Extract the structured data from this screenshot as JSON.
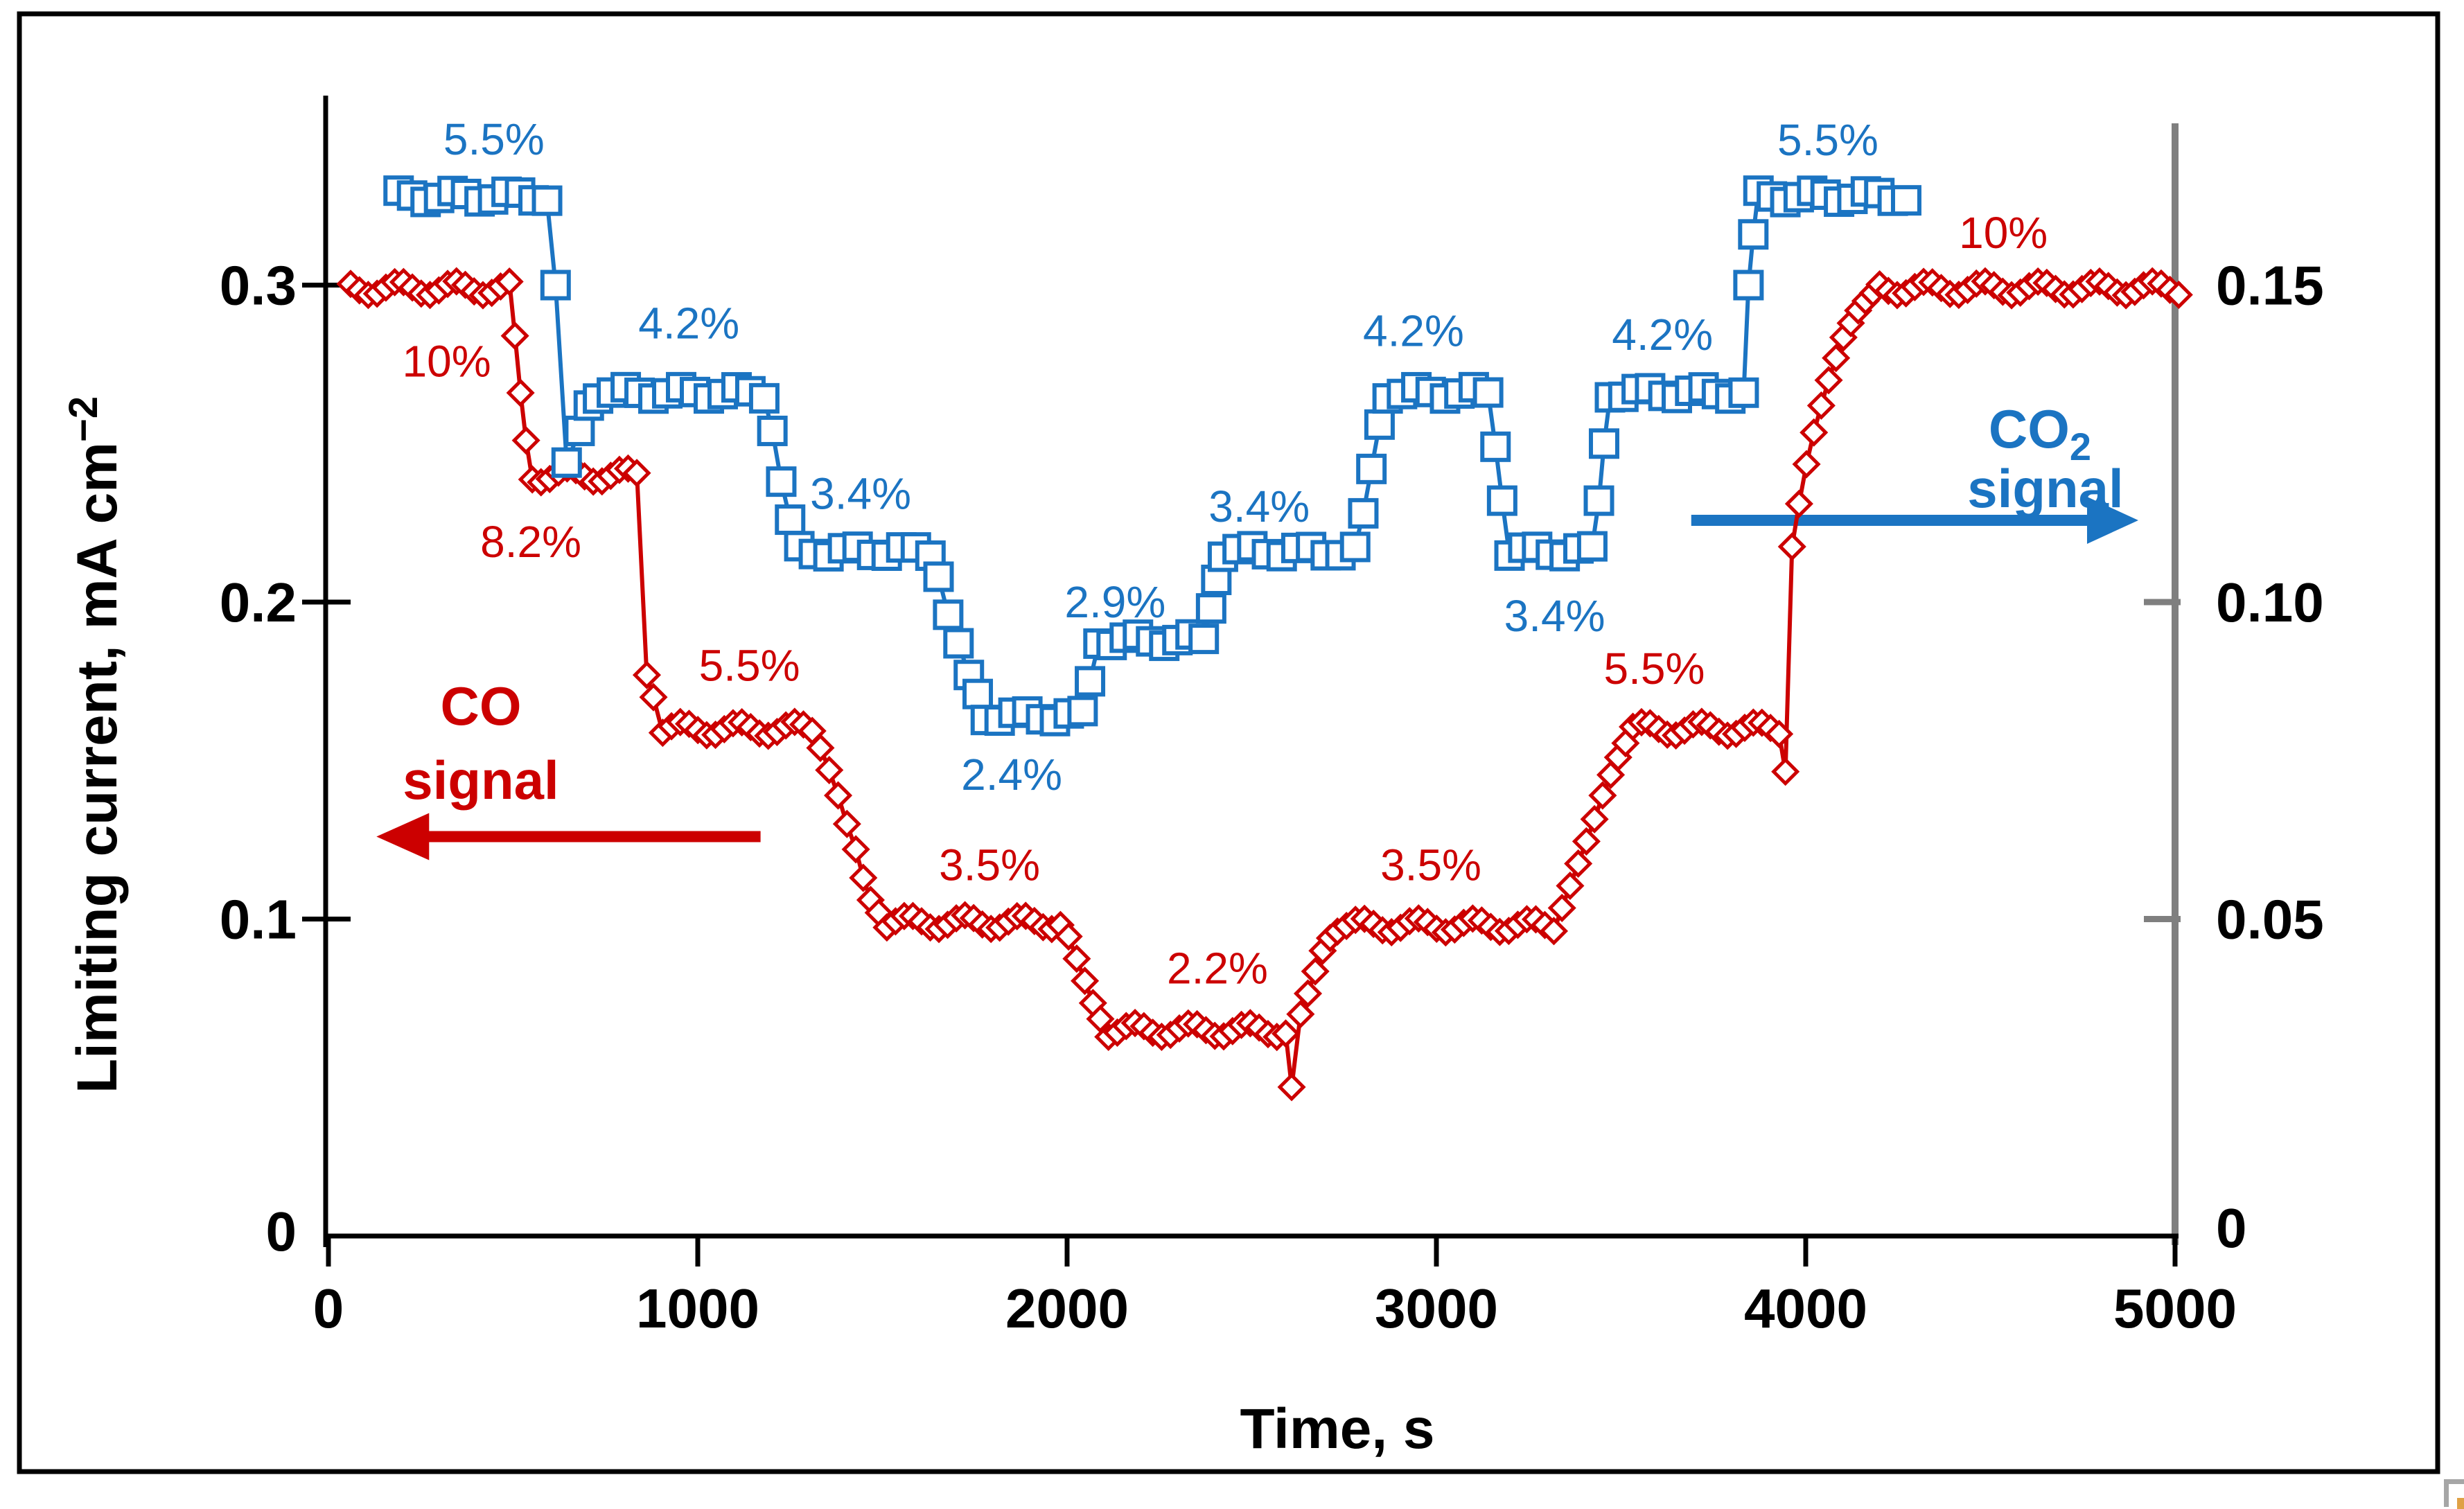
{
  "figure": {
    "background": "#ffffff",
    "frame_color": "#000000",
    "right_axis_color": "#7f7f7f",
    "co_color": "#cc0000",
    "co2_color": "#1b74c2"
  },
  "chart_data": {
    "type": "line",
    "title": "",
    "xlabel": "Time, s",
    "ylabel_left_main": "Limiting current, mA cm",
    "ylabel_left_sup": "−2",
    "legend_position": "none",
    "grid": false,
    "x_axis": {
      "min": 0,
      "max": 5000,
      "tick_values": [
        0,
        1000,
        2000,
        3000,
        4000,
        5000
      ],
      "tick_labels": [
        "0",
        "1000",
        "2000",
        "3000",
        "4000",
        "5000"
      ]
    },
    "y_left": {
      "min": 0,
      "max": 0.35,
      "tick_values": [
        0.3,
        0.2,
        0.1,
        0
      ],
      "tick_labels": [
        "0.3",
        "0.2",
        "0.1",
        "0"
      ]
    },
    "y_right": {
      "min": 0,
      "max": 0.175,
      "tick_values": [
        0.15,
        0.1,
        0.05,
        0
      ],
      "tick_labels": [
        "0.15",
        "0.10",
        "0.05",
        "0"
      ]
    },
    "series": [
      {
        "name": "CO signal",
        "axis": "left",
        "color": "#cc0000",
        "marker": "diamond",
        "profile": [
          {
            "t0": 60,
            "t1": 490,
            "v": 0.299
          },
          {
            "t": 505,
            "v": 0.284
          },
          {
            "t": 520,
            "v": 0.266
          },
          {
            "t": 535,
            "v": 0.251
          },
          {
            "t0": 552,
            "t1": 835,
            "v": 0.24
          },
          {
            "t": 862,
            "v": 0.177
          },
          {
            "t": 880,
            "v": 0.17
          },
          {
            "t0": 905,
            "t1": 1310,
            "v": 0.16
          },
          {
            "t": 1332,
            "v": 0.154
          },
          {
            "t": 1356,
            "v": 0.147
          },
          {
            "t": 1380,
            "v": 0.139
          },
          {
            "t": 1404,
            "v": 0.13
          },
          {
            "t": 1428,
            "v": 0.122
          },
          {
            "t": 1448,
            "v": 0.113
          },
          {
            "t": 1468,
            "v": 0.106
          },
          {
            "t": 1490,
            "v": 0.102
          },
          {
            "t0": 1512,
            "t1": 1982,
            "v": 0.099
          },
          {
            "t": 2004,
            "v": 0.0945
          },
          {
            "t": 2026,
            "v": 0.0875
          },
          {
            "t": 2048,
            "v": 0.0805
          },
          {
            "t": 2070,
            "v": 0.0735
          },
          {
            "t": 2090,
            "v": 0.0685
          },
          {
            "t0": 2112,
            "t1": 2592,
            "v": 0.065
          },
          {
            "t": 2608,
            "v": 0.047
          },
          {
            "t": 2632,
            "v": 0.07
          },
          {
            "t": 2652,
            "v": 0.0765
          },
          {
            "t": 2672,
            "v": 0.0835
          },
          {
            "t": 2692,
            "v": 0.09
          },
          {
            "t": 2712,
            "v": 0.094
          },
          {
            "t0": 2732,
            "t1": 3318,
            "v": 0.098
          },
          {
            "t": 3340,
            "v": 0.1035
          },
          {
            "t": 3362,
            "v": 0.1105
          },
          {
            "t": 3384,
            "v": 0.1175
          },
          {
            "t": 3406,
            "v": 0.1245
          },
          {
            "t": 3428,
            "v": 0.1315
          },
          {
            "t": 3450,
            "v": 0.139
          },
          {
            "t": 3472,
            "v": 0.1455
          },
          {
            "t": 3492,
            "v": 0.151
          },
          {
            "t": 3512,
            "v": 0.1555
          },
          {
            "t0": 3532,
            "t1": 3928,
            "v": 0.16
          },
          {
            "t": 3945,
            "v": 0.1465
          },
          {
            "t": 3963,
            "v": 0.2175
          },
          {
            "t": 3982,
            "v": 0.231
          },
          {
            "t": 4002,
            "v": 0.2435
          },
          {
            "t": 4022,
            "v": 0.2535
          },
          {
            "t": 4042,
            "v": 0.262
          },
          {
            "t": 4062,
            "v": 0.27
          },
          {
            "t": 4082,
            "v": 0.277
          },
          {
            "t": 4102,
            "v": 0.2835
          },
          {
            "t": 4122,
            "v": 0.288
          },
          {
            "t": 4142,
            "v": 0.292
          },
          {
            "t": 4162,
            "v": 0.295
          },
          {
            "t": 4182,
            "v": 0.2975
          },
          {
            "t0": 4200,
            "t1": 5010,
            "v": 0.299
          }
        ]
      },
      {
        "name": "CO2 signal",
        "axis": "right",
        "color": "#1b74c2",
        "marker": "square",
        "profile": [
          {
            "t0": 190,
            "t1": 592,
            "v": 0.164
          },
          {
            "t": 615,
            "v": 0.15
          },
          {
            "t": 645,
            "v": 0.122
          },
          {
            "t": 680,
            "v": 0.127
          },
          {
            "t": 705,
            "v": 0.131
          },
          {
            "t0": 730,
            "t1": 1180,
            "v": 0.133
          },
          {
            "t": 1202,
            "v": 0.127
          },
          {
            "t": 1226,
            "v": 0.119
          },
          {
            "t": 1250,
            "v": 0.113
          },
          {
            "t0": 1275,
            "t1": 1630,
            "v": 0.108
          },
          {
            "t": 1652,
            "v": 0.104
          },
          {
            "t": 1678,
            "v": 0.098
          },
          {
            "t": 1706,
            "v": 0.0935
          },
          {
            "t": 1734,
            "v": 0.0885
          },
          {
            "t": 1758,
            "v": 0.0855
          },
          {
            "t0": 1780,
            "t1": 2042,
            "v": 0.082
          },
          {
            "t": 2062,
            "v": 0.0875
          },
          {
            "t0": 2085,
            "t1": 2370,
            "v": 0.094
          },
          {
            "t": 2390,
            "v": 0.099
          },
          {
            "t": 2404,
            "v": 0.1035
          },
          {
            "t0": 2422,
            "t1": 2780,
            "v": 0.108
          },
          {
            "t": 2802,
            "v": 0.114
          },
          {
            "t": 2824,
            "v": 0.121
          },
          {
            "t": 2846,
            "v": 0.128
          },
          {
            "t0": 2868,
            "t1": 3140,
            "v": 0.133
          },
          {
            "t": 3160,
            "v": 0.1245
          },
          {
            "t": 3178,
            "v": 0.116
          },
          {
            "t0": 3198,
            "t1": 3422,
            "v": 0.108
          },
          {
            "t": 3440,
            "v": 0.116
          },
          {
            "t": 3454,
            "v": 0.125
          },
          {
            "t0": 3470,
            "t1": 3832,
            "v": 0.133
          },
          {
            "t": 3845,
            "v": 0.15
          },
          {
            "t": 3858,
            "v": 0.158
          },
          {
            "t0": 3872,
            "t1": 4272,
            "v": 0.164
          }
        ]
      }
    ],
    "annotations": {
      "red": [
        {
          "text": "10%",
          "t": 320,
          "v": 0.276
        },
        {
          "text": "8.2%",
          "t": 548,
          "v": 0.219
        },
        {
          "text": "5.5%",
          "t": 1140,
          "v": 0.18
        },
        {
          "text": "3.5%",
          "t": 1790,
          "v": 0.117
        },
        {
          "text": "2.2%",
          "t": 2407,
          "v": 0.0845
        },
        {
          "text": "3.5%",
          "t": 2985,
          "v": 0.117
        },
        {
          "text": "5.5%",
          "t": 3590,
          "v": 0.179
        },
        {
          "text": "10%",
          "t": 4535,
          "v": 0.3165
        }
      ],
      "blue": [
        {
          "text": "5.5%",
          "t": 448,
          "v": 0.173
        },
        {
          "text": "4.2%",
          "t": 976,
          "v": 0.144
        },
        {
          "text": "3.4%",
          "t": 1441,
          "v": 0.1171
        },
        {
          "text": "2.4%",
          "t": 1850,
          "v": 0.0728
        },
        {
          "text": "2.9%",
          "t": 2130,
          "v": 0.1
        },
        {
          "text": "3.4%",
          "t": 2520,
          "v": 0.1151
        },
        {
          "text": "4.2%",
          "t": 2938,
          "v": 0.1428
        },
        {
          "text": "3.4%",
          "t": 3320,
          "v": 0.0978
        },
        {
          "text": "4.2%",
          "t": 3612,
          "v": 0.1422
        },
        {
          "text": "5.5%",
          "t": 4060,
          "v": 0.1729
        }
      ]
    },
    "co_label": {
      "line1": "CO",
      "line2": "signal"
    },
    "co2_label": {
      "line1_main": "CO",
      "line1_sub": "2",
      "line2": "signal"
    }
  }
}
